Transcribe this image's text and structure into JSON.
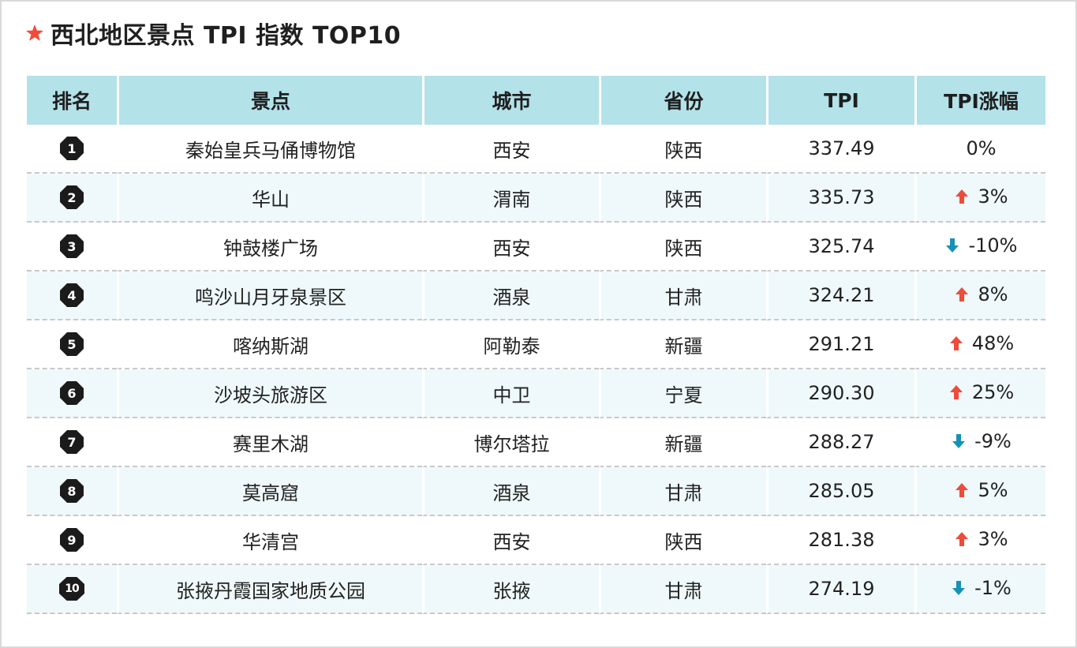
{
  "title": "西北地区景点 TPI 指数 TOP10",
  "colors": {
    "star": "#ef4b3b",
    "header_bg": "#b3e2e9",
    "row_alt_bg": "#eff9fb",
    "up_arrow": "#ef4b3b",
    "down_arrow": "#1592b6"
  },
  "headers": {
    "rank": "排名",
    "spot": "景点",
    "city": "城市",
    "province": "省份",
    "tpi": "TPI",
    "change": "TPI涨幅"
  },
  "rows": [
    {
      "rank": "1",
      "spot": "秦始皇兵马俑博物馆",
      "city": "西安",
      "province": "陕西",
      "tpi": "337.49",
      "change": "0%",
      "trend": "none"
    },
    {
      "rank": "2",
      "spot": "华山",
      "city": "渭南",
      "province": "陕西",
      "tpi": "335.73",
      "change": "3%",
      "trend": "up"
    },
    {
      "rank": "3",
      "spot": "钟鼓楼广场",
      "city": "西安",
      "province": "陕西",
      "tpi": "325.74",
      "change": "-10%",
      "trend": "down"
    },
    {
      "rank": "4",
      "spot": "鸣沙山月牙泉景区",
      "city": "酒泉",
      "province": "甘肃",
      "tpi": "324.21",
      "change": "8%",
      "trend": "up"
    },
    {
      "rank": "5",
      "spot": "喀纳斯湖",
      "city": "阿勒泰",
      "province": "新疆",
      "tpi": "291.21",
      "change": "48%",
      "trend": "up"
    },
    {
      "rank": "6",
      "spot": "沙坡头旅游区",
      "city": "中卫",
      "province": "宁夏",
      "tpi": "290.30",
      "change": "25%",
      "trend": "up"
    },
    {
      "rank": "7",
      "spot": "赛里木湖",
      "city": "博尔塔拉",
      "province": "新疆",
      "tpi": "288.27",
      "change": "-9%",
      "trend": "down"
    },
    {
      "rank": "8",
      "spot": "莫高窟",
      "city": "酒泉",
      "province": "甘肃",
      "tpi": "285.05",
      "change": "5%",
      "trend": "up"
    },
    {
      "rank": "9",
      "spot": "华清宫",
      "city": "西安",
      "province": "陕西",
      "tpi": "281.38",
      "change": "3%",
      "trend": "up"
    },
    {
      "rank": "10",
      "spot": "张掖丹霞国家地质公园",
      "city": "张掖",
      "province": "甘肃",
      "tpi": "274.19",
      "change": "-1%",
      "trend": "down"
    }
  ]
}
